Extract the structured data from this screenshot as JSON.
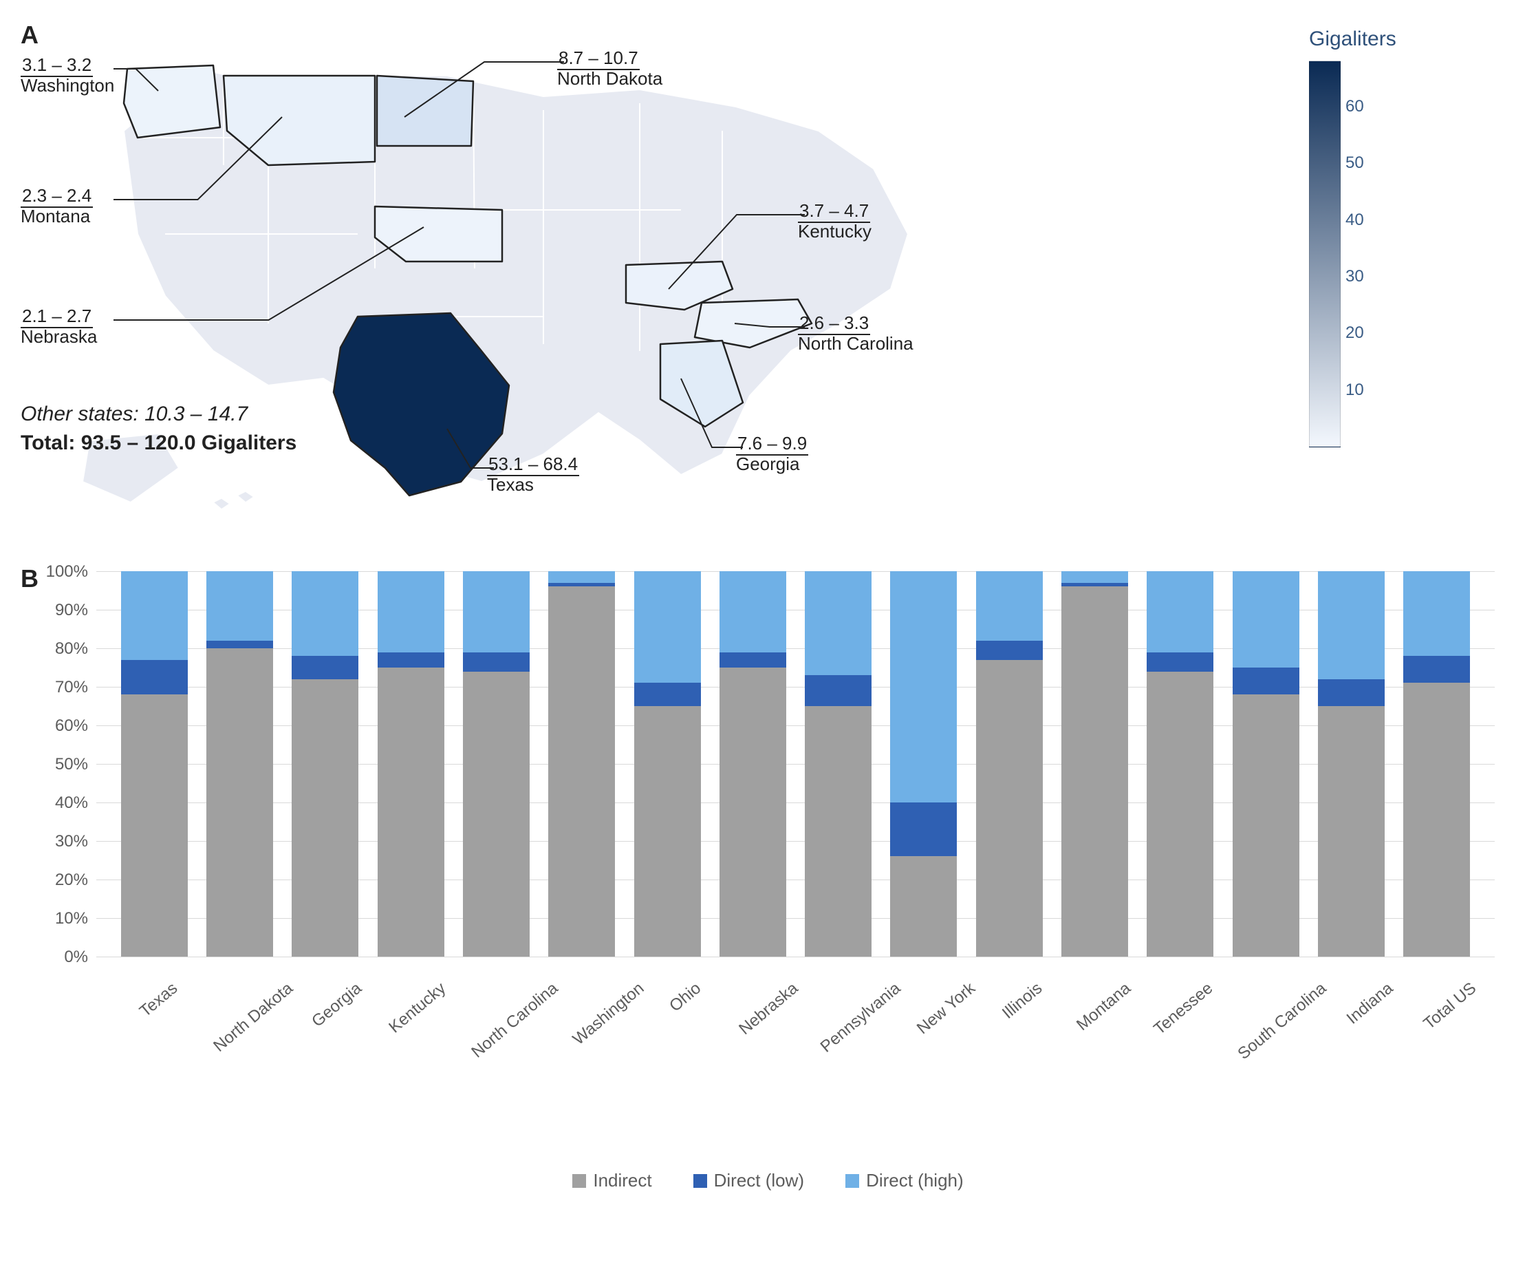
{
  "colors": {
    "indirect": "#a0a0a0",
    "direct_low": "#2f60b3",
    "direct_high": "#6fb0e6",
    "map_bg": "#e7eaf2",
    "map_stroke": "#ffffff",
    "map_dark": "#0a2a54",
    "grid": "#d9d9d9",
    "text_axis": "#5c5c5c",
    "legend_title_color": "#2f517a"
  },
  "panelA": {
    "label": "A",
    "legend_title": "Gigaliters",
    "colorbar": {
      "min": 0,
      "max": 68,
      "ticks": [
        10,
        20,
        30,
        40,
        50,
        60
      ],
      "gradient_top": "#0a2a54",
      "gradient_bot": "#f3f7fd"
    },
    "other_text": "Other states: 10.3 – 14.7",
    "total_text": "Total: 93.5 – 120.0 Gigaliters",
    "callouts": [
      {
        "range": "3.1 – 3.2",
        "name": "Washington",
        "lx": -60,
        "ly": 40,
        "tx": 140,
        "ty": 92
      },
      {
        "range": "2.3 – 2.4",
        "name": "Montana",
        "lx": -60,
        "ly": 230,
        "tx": 320,
        "ty": 130
      },
      {
        "range": "2.1 – 2.7",
        "name": "Nebraska",
        "lx": -60,
        "ly": 405,
        "tx": 526,
        "ty": 290
      },
      {
        "range": "8.7 – 10.7",
        "name": "North Dakota",
        "lx": 720,
        "ly": 30,
        "tx": 498,
        "ty": 130
      },
      {
        "range": "3.7 – 4.7",
        "name": "Kentucky",
        "lx": 1070,
        "ly": 252,
        "tx": 882,
        "ty": 380
      },
      {
        "range": "2.6 – 3.3",
        "name": "North Carolina",
        "lx": 1070,
        "ly": 415,
        "tx": 978,
        "ty": 430
      },
      {
        "range": "7.6 – 9.9",
        "name": "Georgia",
        "lx": 980,
        "ly": 590,
        "tx": 900,
        "ty": 510
      },
      {
        "range": "53.1 – 68.4",
        "name": "Texas",
        "lx": 618,
        "ly": 620,
        "tx": 560,
        "ty": 583
      }
    ],
    "highlighted_states": {
      "TX": {
        "fill": "#0a2a54"
      },
      "ND": {
        "fill": "#d6e3f3"
      },
      "MT": {
        "fill": "#e9f1fa"
      },
      "WA": {
        "fill": "#ecf3fb"
      },
      "GA": {
        "fill": "#e1ecf8"
      },
      "KY": {
        "fill": "#ebf2fb"
      },
      "NC": {
        "fill": "#edf3fb"
      },
      "NE": {
        "fill": "#edf3fb"
      }
    }
  },
  "panelB": {
    "label": "B",
    "type": "stacked-bar-100pct",
    "y_ticks": [
      0,
      10,
      20,
      30,
      40,
      50,
      60,
      70,
      80,
      90,
      100
    ],
    "y_suffix": "%",
    "legend": [
      {
        "label": "Indirect",
        "key": "indirect"
      },
      {
        "label": "Direct (low)",
        "key": "direct_low"
      },
      {
        "label": "Direct (high)",
        "key": "direct_high"
      }
    ],
    "series": [
      {
        "name": "Texas",
        "indirect": 68,
        "direct_low": 9,
        "direct_high": 23
      },
      {
        "name": "North Dakota",
        "indirect": 80,
        "direct_low": 2,
        "direct_high": 18
      },
      {
        "name": "Georgia",
        "indirect": 72,
        "direct_low": 6,
        "direct_high": 22
      },
      {
        "name": "Kentucky",
        "indirect": 75,
        "direct_low": 4,
        "direct_high": 21
      },
      {
        "name": "North Carolina",
        "indirect": 74,
        "direct_low": 5,
        "direct_high": 21
      },
      {
        "name": "Washington",
        "indirect": 96,
        "direct_low": 1,
        "direct_high": 3
      },
      {
        "name": "Ohio",
        "indirect": 65,
        "direct_low": 6,
        "direct_high": 29
      },
      {
        "name": "Nebraska",
        "indirect": 75,
        "direct_low": 4,
        "direct_high": 21
      },
      {
        "name": "Pennsylvania",
        "indirect": 65,
        "direct_low": 8,
        "direct_high": 27
      },
      {
        "name": "New York",
        "indirect": 26,
        "direct_low": 14,
        "direct_high": 60
      },
      {
        "name": "Illinois",
        "indirect": 77,
        "direct_low": 5,
        "direct_high": 18
      },
      {
        "name": "Montana",
        "indirect": 96,
        "direct_low": 1,
        "direct_high": 3
      },
      {
        "name": "Tenessee",
        "indirect": 74,
        "direct_low": 5,
        "direct_high": 21
      },
      {
        "name": "South Carolina",
        "indirect": 68,
        "direct_low": 7,
        "direct_high": 25
      },
      {
        "name": "Indiana",
        "indirect": 65,
        "direct_low": 7,
        "direct_high": 28
      },
      {
        "name": "Total US",
        "indirect": 71,
        "direct_low": 7,
        "direct_high": 22
      }
    ]
  }
}
